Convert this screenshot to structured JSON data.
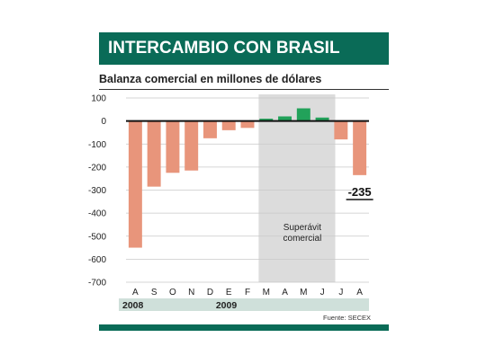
{
  "header": {
    "title": "INTERCAMBIO CON BRASIL",
    "subtitle": "Balanza comercial en millones de dólares"
  },
  "colors": {
    "deficit": "#e8957b",
    "surplus": "#22a25a",
    "shade": "#dcdcdc",
    "brand": "#0a6b57",
    "year_band": "#cfe0da"
  },
  "chart_data": {
    "type": "bar",
    "categories": [
      "A",
      "S",
      "O",
      "N",
      "D",
      "E",
      "F",
      "M",
      "A",
      "M",
      "J",
      "J",
      "A"
    ],
    "values": [
      -550,
      -285,
      -225,
      -215,
      -75,
      -40,
      -30,
      10,
      20,
      55,
      15,
      -80,
      -235
    ],
    "ylim": [
      -700,
      100
    ],
    "yticks": [
      100,
      0,
      -100,
      -200,
      -300,
      -400,
      -500,
      -600,
      -700
    ],
    "grid": true,
    "shaded_categories": [
      7,
      8,
      9,
      10
    ],
    "shaded_label": "Superávit comercial",
    "last_value_label": "-235",
    "years": [
      {
        "label": "2008",
        "start": 0,
        "end": 4
      },
      {
        "label": "2009",
        "start": 5,
        "end": 12
      }
    ],
    "source": "Fuente: SECEX"
  }
}
